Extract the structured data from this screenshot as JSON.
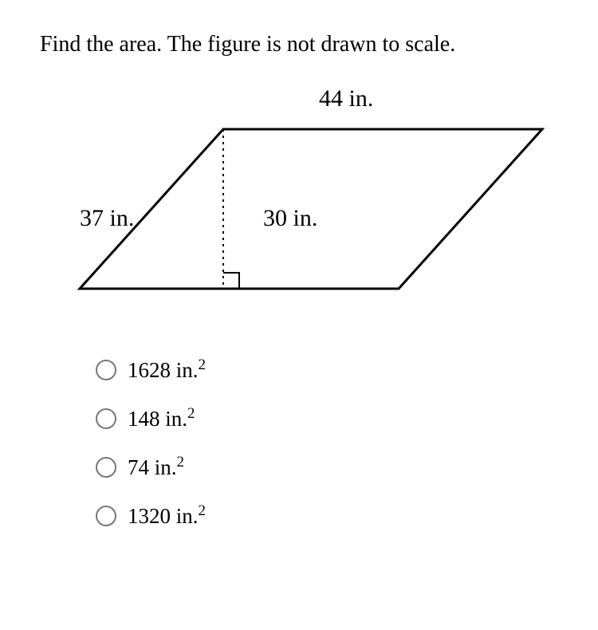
{
  "question": {
    "prompt": "Find the area. The figure is not drawn to scale."
  },
  "figure": {
    "type": "parallelogram",
    "dimensions": {
      "base": 44,
      "side": 37,
      "height": 30,
      "unit": "in."
    },
    "labels": {
      "top": "44 in.",
      "side": "37 in.",
      "height": "30 in."
    },
    "style": {
      "stroke_color": "#000000",
      "stroke_width": 3,
      "dash_pattern": "3,5",
      "background_color": "#ffffff",
      "font_size": 30,
      "font_family": "Times New Roman"
    },
    "geometry": {
      "topLeft": [
        210,
        55
      ],
      "topRight": [
        610,
        55
      ],
      "bottomRight": [
        430,
        255
      ],
      "bottomLeft": [
        30,
        255
      ],
      "heightFoot": [
        210,
        255
      ],
      "rightAngleBoxSize": 20
    }
  },
  "options": {
    "items": [
      {
        "value": "1628",
        "unit": "in.",
        "exponent": "2"
      },
      {
        "value": "148",
        "unit": "in.",
        "exponent": "2"
      },
      {
        "value": "74",
        "unit": "in.",
        "exponent": "2"
      },
      {
        "value": "1320",
        "unit": "in.",
        "exponent": "2"
      }
    ],
    "style": {
      "radio_border_color": "#777777",
      "font_size": 27
    }
  }
}
